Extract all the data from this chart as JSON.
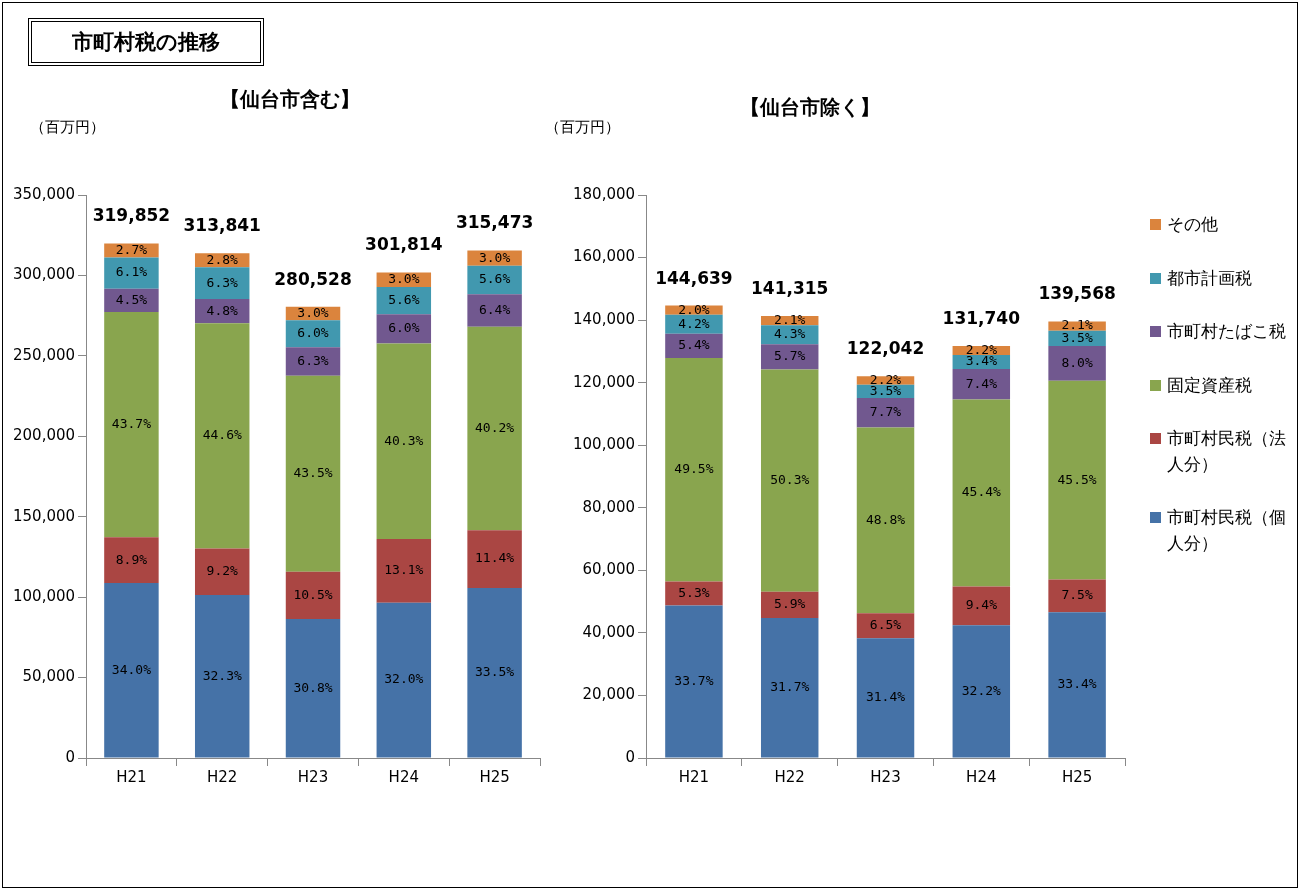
{
  "chart_data": [
    {
      "type": "bar",
      "title": "市町村税の推移",
      "subtitle": "【仙台市含む】",
      "ylabel": "（百万円）",
      "categories": [
        "H21",
        "H22",
        "H23",
        "H24",
        "H25"
      ],
      "stacked": true,
      "grid": false,
      "legend": false,
      "ylim": [
        0,
        350000
      ],
      "yticks": [
        {
          "value": 0,
          "label": "0"
        },
        {
          "value": 50000,
          "label": "50,000"
        },
        {
          "value": 100000,
          "label": "100,000"
        },
        {
          "value": 150000,
          "label": "150,000"
        },
        {
          "value": 200000,
          "label": "200,000"
        },
        {
          "value": 250000,
          "label": "250,000"
        },
        {
          "value": 300000,
          "label": "300,000"
        },
        {
          "value": 350000,
          "label": "350,000"
        }
      ],
      "totals": [
        "319,852",
        "313,841",
        "280,528",
        "301,814",
        "315,473"
      ],
      "series": [
        {
          "color": "#4572a7",
          "values": [
            108750,
            101371,
            86403,
            96580,
            105683
          ]
        },
        {
          "color": "#aa4643",
          "values": [
            28467,
            28873,
            29455,
            39538,
            35964
          ]
        },
        {
          "color": "#89a54e",
          "values": [
            140095,
            139973,
            121749,
            121631,
            126506
          ]
        },
        {
          "color": "#71588f",
          "values": [
            14393,
            15064,
            17673,
            18109,
            20190
          ]
        },
        {
          "color": "#4198af",
          "values": [
            19511,
            19772,
            16832,
            16902,
            17666
          ]
        },
        {
          "color": "#db843d",
          "values": [
            8636,
            8788,
            8416,
            9054,
            9464
          ]
        }
      ],
      "annotations": [
        "34.0%",
        "8.9%",
        "43.7%",
        "4.5%",
        "6.1%",
        "2.7%",
        "32.3%",
        "9.2%",
        "44.6%",
        "4.8%",
        "6.3%",
        "2.8%",
        "30.8%",
        "10.5%",
        "43.5%",
        "6.3%",
        "6.0%",
        "3.0%",
        "32.0%",
        "13.1%",
        "40.3%",
        "6.0%",
        "5.6%",
        "3.0%",
        "33.5%",
        "11.4%",
        "40.2%",
        "6.4%",
        "5.6%",
        "3.0%"
      ]
    },
    {
      "type": "bar",
      "title": "【仙台市除く】",
      "ylabel": "（百万円）",
      "categories": [
        "H21",
        "H22",
        "H23",
        "H24",
        "H25"
      ],
      "stacked": true,
      "grid": false,
      "legend": "right",
      "ylim": [
        0,
        180000
      ],
      "yticks": [
        {
          "value": 0,
          "label": "0"
        },
        {
          "value": 20000,
          "label": "20,000"
        },
        {
          "value": 40000,
          "label": "40,000"
        },
        {
          "value": 60000,
          "label": "60,000"
        },
        {
          "value": 80000,
          "label": "80,000"
        },
        {
          "value": 100000,
          "label": "100,000"
        },
        {
          "value": 120000,
          "label": "120,000"
        },
        {
          "value": 140000,
          "label": "140,000"
        },
        {
          "value": 160000,
          "label": "160,000"
        },
        {
          "value": 180000,
          "label": "180,000"
        }
      ],
      "totals": [
        "144,639",
        "141,315",
        "122,042",
        "131,740",
        "139,568"
      ],
      "series": [
        {
          "name": "市町村民税（個人分）",
          "color": "#4572a7",
          "values": [
            48743,
            44797,
            38321,
            42420,
            46616
          ]
        },
        {
          "name": "市町村民税（法人分）",
          "color": "#aa4643",
          "values": [
            7666,
            8338,
            7933,
            12384,
            10468
          ]
        },
        {
          "name": "固定資産税",
          "color": "#89a54e",
          "values": [
            71451,
            71080,
            59435,
            59810,
            63503
          ]
        },
        {
          "name": "市町村たばこ税",
          "color": "#71588f",
          "values": [
            7811,
            8055,
            9397,
            9749,
            11165
          ]
        },
        {
          "name": "都市計画税",
          "color": "#4198af",
          "values": [
            6075,
            6077,
            4271,
            4479,
            4885
          ]
        },
        {
          "name": "その他",
          "color": "#db843d",
          "values": [
            2893,
            2968,
            2685,
            2898,
            2931
          ]
        }
      ],
      "annotations": [
        "33.7%",
        "5.3%",
        "49.5%",
        "5.4%",
        "4.2%",
        "2.0%",
        "31.7%",
        "5.9%",
        "50.3%",
        "5.7%",
        "4.3%",
        "2.1%",
        "31.4%",
        "6.5%",
        "48.8%",
        "7.7%",
        "3.5%",
        "2.2%",
        "32.2%",
        "9.4%",
        "45.4%",
        "7.4%",
        "3.4%",
        "2.2%",
        "33.4%",
        "7.5%",
        "45.5%",
        "8.0%",
        "3.5%",
        "2.1%"
      ]
    }
  ]
}
